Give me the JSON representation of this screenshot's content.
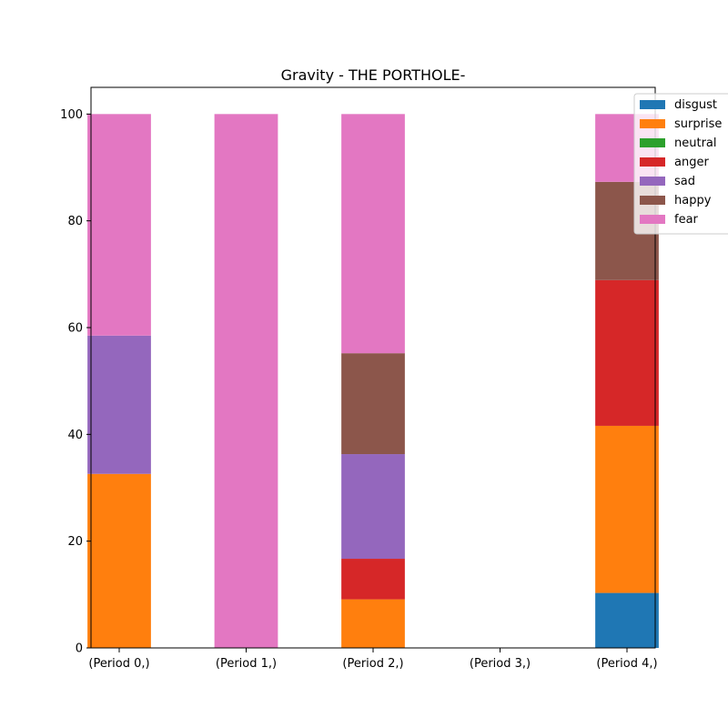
{
  "chart_data": {
    "type": "bar",
    "stacked": true,
    "title": "Gravity - THE PORTHOLE-",
    "xlabel": "",
    "ylabel": "",
    "ylim": [
      0,
      105
    ],
    "yticks": [
      0,
      20,
      40,
      60,
      80,
      100
    ],
    "grid": false,
    "legend_position": "top-right",
    "categories": [
      "(Period 0,)",
      "(Period 1,)",
      "(Period 2,)",
      "(Period 3,)",
      "(Period 4,)"
    ],
    "series": [
      {
        "name": "disgust",
        "color": "#1f77b4",
        "values": [
          0,
          0,
          0,
          0,
          10.3
        ]
      },
      {
        "name": "surprise",
        "color": "#ff7f0e",
        "values": [
          32.6,
          0,
          9.1,
          0,
          31.3
        ]
      },
      {
        "name": "neutral",
        "color": "#2ca02c",
        "values": [
          0,
          0,
          0,
          0,
          0
        ]
      },
      {
        "name": "anger",
        "color": "#d62728",
        "values": [
          0,
          0,
          7.6,
          0,
          27.3
        ]
      },
      {
        "name": "sad",
        "color": "#9467bd",
        "values": [
          25.9,
          0,
          19.6,
          0,
          0
        ]
      },
      {
        "name": "happy",
        "color": "#8c564b",
        "values": [
          0,
          0,
          18.9,
          0,
          18.4
        ]
      },
      {
        "name": "fear",
        "color": "#e377c2",
        "values": [
          41.5,
          100,
          44.8,
          0,
          12.7
        ]
      }
    ]
  }
}
